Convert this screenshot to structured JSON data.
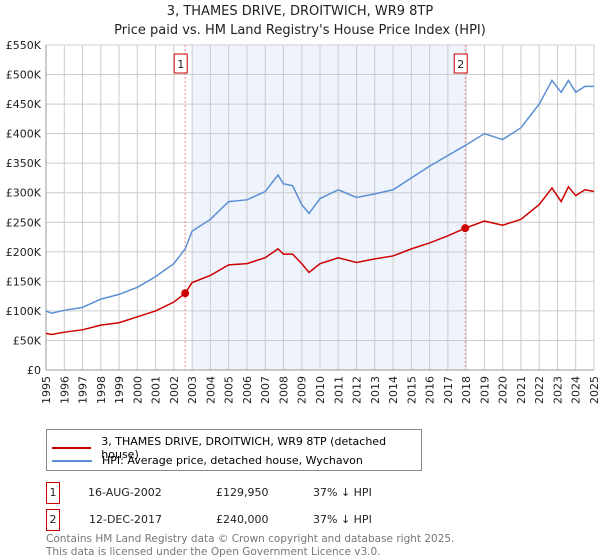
{
  "title": "3, THAMES DRIVE, DROITWICH, WR9 8TP",
  "subtitle": "Price paid vs. HM Land Registry's House Price Index (HPI)",
  "chart_data": {
    "type": "line",
    "title": "3, THAMES DRIVE, DROITWICH, WR9 8TP",
    "subtitle": "Price paid vs. HM Land Registry's House Price Index (HPI)",
    "xlim": [
      1995,
      2025
    ],
    "ylim": [
      0,
      550000
    ],
    "xticks": [
      "1995",
      "1996",
      "1997",
      "1998",
      "1999",
      "2000",
      "2001",
      "2002",
      "2003",
      "2004",
      "2005",
      "2006",
      "2007",
      "2008",
      "2009",
      "2010",
      "2011",
      "2012",
      "2013",
      "2014",
      "2015",
      "2016",
      "2017",
      "2018",
      "2019",
      "2020",
      "2021",
      "2022",
      "2023",
      "2024",
      "2025"
    ],
    "yticks": [
      {
        "v": 0,
        "l": "£0"
      },
      {
        "v": 50000,
        "l": "£50K"
      },
      {
        "v": 100000,
        "l": "£100K"
      },
      {
        "v": 150000,
        "l": "£150K"
      },
      {
        "v": 200000,
        "l": "£200K"
      },
      {
        "v": 250000,
        "l": "£250K"
      },
      {
        "v": 300000,
        "l": "£300K"
      },
      {
        "v": 350000,
        "l": "£350K"
      },
      {
        "v": 400000,
        "l": "£400K"
      },
      {
        "v": 450000,
        "l": "£450K"
      },
      {
        "v": 500000,
        "l": "£500K"
      },
      {
        "v": 550000,
        "l": "£550K"
      }
    ],
    "grid": true,
    "shaded_range": [
      2003.0,
      2017.95
    ],
    "series": [
      {
        "name": "3, THAMES DRIVE, DROITWICH, WR9 8TP (detached house)",
        "color": "#cc0000",
        "x": [
          1995,
          1995.3,
          1996,
          1997,
          1998,
          1999,
          2000,
          2001,
          2002,
          2002.62,
          2003,
          2004,
          2005,
          2006,
          2007,
          2007.7,
          2008,
          2008.5,
          2009,
          2009.4,
          2010,
          2011,
          2012,
          2013,
          2014,
          2015,
          2016,
          2017,
          2017.95,
          2019,
          2020,
          2021,
          2022,
          2022.7,
          2023.2,
          2023.6,
          2024,
          2024.5,
          2025
        ],
        "y": [
          62000,
          60000,
          64000,
          68000,
          76000,
          80000,
          90000,
          100000,
          115000,
          129950,
          148000,
          160000,
          178000,
          180000,
          190000,
          205000,
          196000,
          196000,
          180000,
          165000,
          180000,
          190000,
          182000,
          188000,
          193000,
          205000,
          215000,
          227000,
          240000,
          252000,
          245000,
          255000,
          280000,
          308000,
          285000,
          310000,
          295000,
          305000,
          302000
        ]
      },
      {
        "name": "HPI: Average price, detached house, Wychavon",
        "color": "#5b8fd4",
        "x": [
          1995,
          1995.3,
          1996,
          1997,
          1998,
          1999,
          2000,
          2001,
          2002,
          2002.62,
          2003,
          2004,
          2005,
          2006,
          2007,
          2007.7,
          2008,
          2008.5,
          2009,
          2009.4,
          2010,
          2011,
          2012,
          2013,
          2014,
          2015,
          2016,
          2017,
          2017.95,
          2019,
          2020,
          2021,
          2022,
          2022.7,
          2023.2,
          2023.6,
          2024,
          2024.5,
          2025
        ],
        "y": [
          100000,
          96000,
          101000,
          106000,
          120000,
          128000,
          140000,
          158000,
          180000,
          205000,
          235000,
          255000,
          285000,
          288000,
          302000,
          330000,
          315000,
          312000,
          280000,
          265000,
          290000,
          305000,
          292000,
          298000,
          305000,
          325000,
          345000,
          363000,
          380000,
          400000,
          390000,
          410000,
          450000,
          490000,
          470000,
          490000,
          470000,
          480000,
          480000
        ]
      }
    ],
    "annotations": [
      {
        "label": "1",
        "x": 2002.62,
        "y": 129950
      },
      {
        "label": "2",
        "x": 2017.95,
        "y": 240000
      }
    ],
    "legend": "below"
  },
  "legend": {
    "items": [
      {
        "label": "3, THAMES DRIVE, DROITWICH, WR9 8TP (detached house)",
        "color": "#cc0000"
      },
      {
        "label": "HPI: Average price, detached house, Wychavon",
        "color": "#5b8fd4"
      }
    ]
  },
  "transactions": [
    {
      "num": "1",
      "date": "16-AUG-2002",
      "price": "£129,950",
      "hpi": "37% ↓ HPI"
    },
    {
      "num": "2",
      "date": "12-DEC-2017",
      "price": "£240,000",
      "hpi": "37% ↓ HPI"
    }
  ],
  "footer": {
    "line1": "Contains HM Land Registry data © Crown copyright and database right 2025.",
    "line2": "This data is licensed under the Open Government Licence v3.0."
  }
}
